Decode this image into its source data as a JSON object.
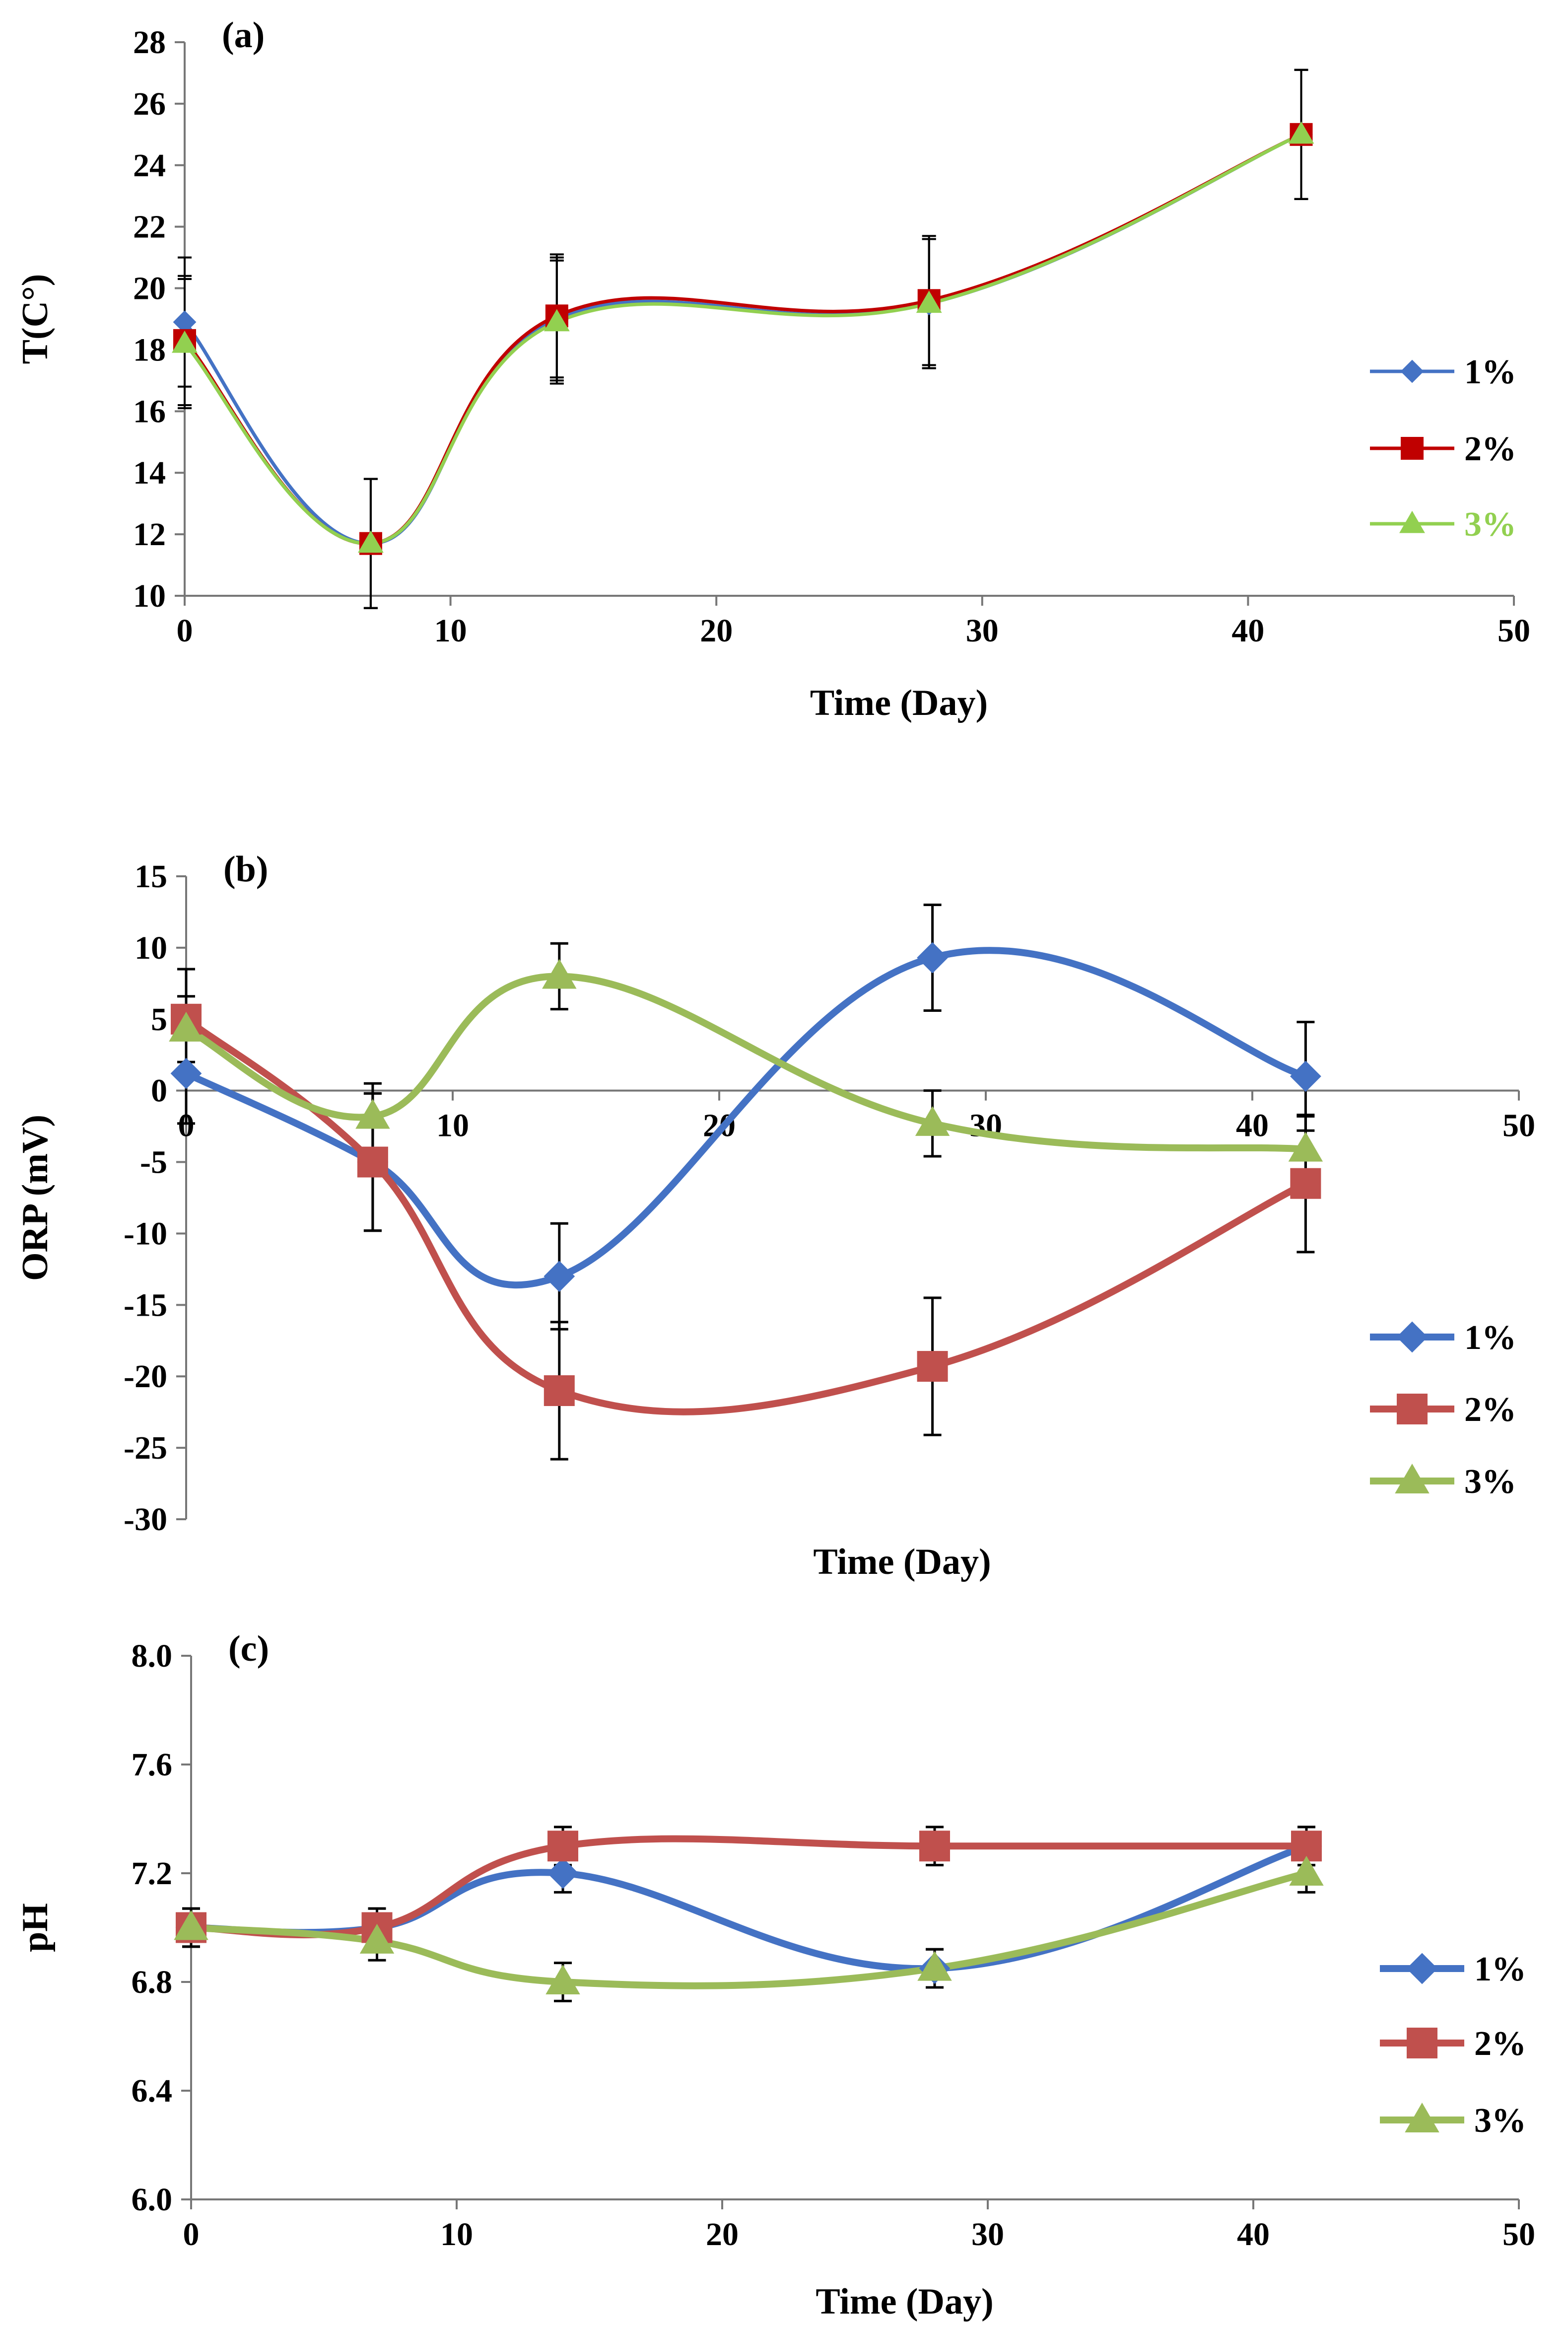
{
  "chart_data": [
    {
      "id": "a",
      "type": "line",
      "panel_label": "(a)",
      "xlabel": "Time (Day)",
      "ylabel": "T(C°)",
      "xlim": [
        0,
        50
      ],
      "ylim": [
        10,
        28
      ],
      "xticks": [
        0,
        10,
        20,
        30,
        40,
        50
      ],
      "yticks": [
        10,
        12,
        14,
        16,
        18,
        20,
        22,
        24,
        26,
        28
      ],
      "x": [
        0,
        7,
        14,
        28,
        42
      ],
      "legend_position": "right",
      "series": [
        {
          "name": "1%",
          "marker": "diamond",
          "color": "#4472C4",
          "values": [
            18.9,
            11.7,
            19.0,
            19.5,
            25.0
          ],
          "errors": [
            2.1,
            2.1,
            2.0,
            2.1,
            2.1
          ]
        },
        {
          "name": "2%",
          "marker": "square",
          "color": "#C00000",
          "values": [
            18.3,
            11.7,
            19.1,
            19.6,
            25.0
          ],
          "errors": [
            2.1,
            2.1,
            2.0,
            2.1,
            2.1
          ]
        },
        {
          "name": "3%",
          "marker": "triangle",
          "color": "#92D050",
          "values": [
            18.2,
            11.7,
            18.9,
            19.5,
            25.0
          ],
          "errors": [
            2.1,
            2.1,
            2.0,
            2.1,
            2.1
          ]
        }
      ]
    },
    {
      "id": "b",
      "type": "line",
      "panel_label": "(b)",
      "xlabel": "Time (Day)",
      "ylabel": "ORP (mV)",
      "xlim": [
        0,
        50
      ],
      "ylim": [
        -30,
        15
      ],
      "xticks": [
        0,
        10,
        20,
        30,
        40,
        50
      ],
      "yticks": [
        -30,
        -25,
        -20,
        -15,
        -10,
        -5,
        0,
        5,
        10,
        15
      ],
      "x": [
        0,
        7,
        14,
        28,
        42
      ],
      "legend_position": "right",
      "series": [
        {
          "name": "1%",
          "marker": "diamond",
          "color": "#4472C4",
          "values": [
            1.2,
            -5.0,
            -13.0,
            9.3,
            1.0
          ],
          "errors": [
            3.5,
            4.8,
            3.7,
            3.7,
            3.8
          ]
        },
        {
          "name": "2%",
          "marker": "square",
          "color": "#C0504D",
          "values": [
            5.0,
            -5.0,
            -21.0,
            -19.3,
            -6.5
          ],
          "errors": [
            3.5,
            4.8,
            4.8,
            4.8,
            4.8
          ]
        },
        {
          "name": "3%",
          "marker": "triangle",
          "color": "#9BBB59",
          "values": [
            4.3,
            -1.8,
            8.0,
            -2.3,
            -4.1
          ],
          "errors": [
            2.3,
            2.3,
            2.3,
            2.3,
            2.3
          ]
        }
      ]
    },
    {
      "id": "c",
      "type": "line",
      "panel_label": "(c)",
      "xlabel": "Time (Day)",
      "ylabel": "pH",
      "xlim": [
        0,
        50
      ],
      "ylim": [
        6.0,
        8.0
      ],
      "xticks": [
        0,
        10,
        20,
        30,
        40,
        50
      ],
      "yticks": [
        6.0,
        6.4,
        6.8,
        7.2,
        7.6,
        8.0
      ],
      "ytick_labels": [
        "6.0",
        "6.4",
        "6.8",
        "7.2",
        "7.6",
        "8.0"
      ],
      "x": [
        0,
        7,
        14,
        28,
        42
      ],
      "legend_position": "right",
      "series": [
        {
          "name": "1%",
          "marker": "diamond",
          "color": "#4472C4",
          "values": [
            7.0,
            7.0,
            7.2,
            6.85,
            7.3
          ],
          "errors": [
            0.07,
            0.07,
            0.07,
            0.07,
            0.07
          ]
        },
        {
          "name": "2%",
          "marker": "square",
          "color": "#C0504D",
          "values": [
            7.0,
            7.0,
            7.3,
            7.3,
            7.3
          ],
          "errors": [
            0.07,
            0.07,
            0.07,
            0.07,
            0.07
          ]
        },
        {
          "name": "3%",
          "marker": "triangle",
          "color": "#9BBB59",
          "values": [
            7.0,
            6.95,
            6.8,
            6.85,
            7.2
          ],
          "errors": [
            0.07,
            0.07,
            0.07,
            0.07,
            0.07
          ]
        }
      ]
    }
  ]
}
